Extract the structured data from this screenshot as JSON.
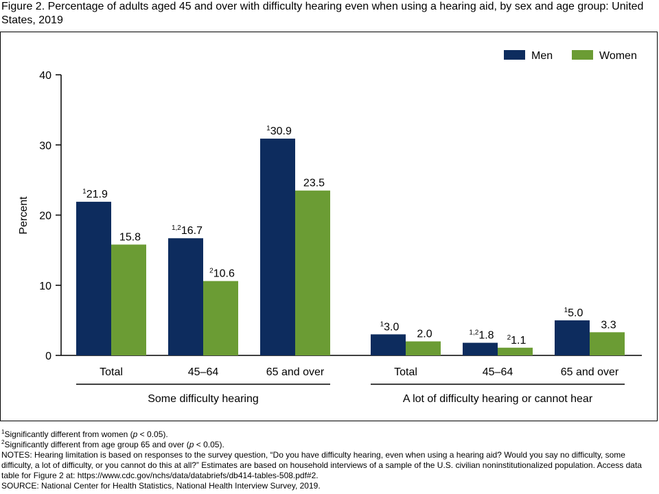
{
  "title": "Figure 2. Percentage of adults aged 45 and over with difficulty hearing even when using a hearing aid, by sex and age group: United States, 2019",
  "chart_data": {
    "type": "bar",
    "ylabel": "Percent",
    "ylim": [
      0,
      40
    ],
    "yticks": [
      0,
      10,
      20,
      30,
      40
    ],
    "groups": [
      {
        "name": "Some difficulty hearing",
        "categories": [
          "Total",
          "45–64",
          "65 and over"
        ]
      },
      {
        "name": "A lot of difficulty hearing or cannot hear",
        "categories": [
          "Total",
          "45–64",
          "65 and over"
        ]
      }
    ],
    "series": [
      {
        "name": "Men",
        "color": "#0d2c5e",
        "values": [
          21.9,
          16.7,
          30.9,
          3.0,
          1.8,
          5.0
        ],
        "labels": [
          "21.9",
          "16.7",
          "30.9",
          "3.0",
          "1.8",
          "5.0"
        ],
        "superscripts": [
          "1",
          "1,2",
          "1",
          "1",
          "1,2",
          "1"
        ]
      },
      {
        "name": "Women",
        "color": "#6b9c34",
        "values": [
          15.8,
          10.6,
          23.5,
          2.0,
          1.1,
          3.3
        ],
        "labels": [
          "15.8",
          "10.6",
          "23.5",
          "2.0",
          "1.1",
          "3.3"
        ],
        "superscripts": [
          "",
          "2",
          "",
          "",
          "2",
          ""
        ]
      }
    ],
    "legend_position": "top-right",
    "grid": false
  },
  "notes": {
    "fn1_sup": "1",
    "fn1_text": "Significantly different from women (",
    "fn1_p": "p",
    "fn1_end": " < 0.05).",
    "fn2_sup": "2",
    "fn2_text": "Significantly different from age group 65 and over (",
    "fn2_p": "p",
    "fn2_end": " < 0.05).",
    "notes_text": "NOTES: Hearing limitation is based on responses to the survey question, “Do you have difficulty hearing, even when using a hearing aid? Would you say no difficulty, some difficulty, a lot of difficulty, or you cannot do this at all?” Estimates are based on household interviews of a sample of the U.S. civilian noninstitutionalized population. Access data table for Figure 2 at: https://www.cdc.gov/nchs/data/databriefs/db414-tables-508.pdf#2.",
    "source_text": "SOURCE: National Center for Health Statistics, National Health Interview Survey, 2019."
  }
}
